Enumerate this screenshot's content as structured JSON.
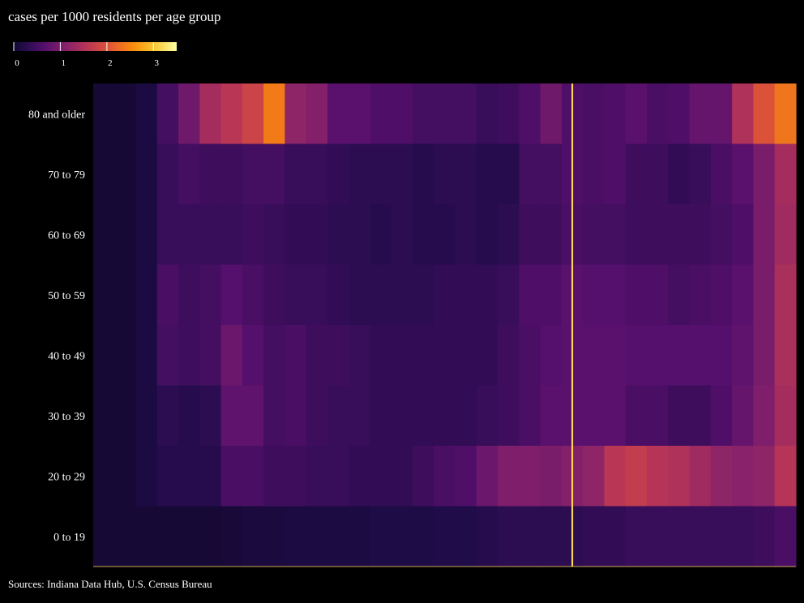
{
  "chart_data": {
    "type": "heatmap",
    "title": "cases per 1000 residents per age group",
    "source": "Sources: Indiana Data Hub, U.S. Census Bureau",
    "colorscale": "inferno",
    "color_range": [
      0,
      3.5
    ],
    "colorbar": {
      "ticks": [
        0,
        1,
        2,
        3
      ],
      "tick_labels": [
        "0",
        "1",
        "2",
        "3"
      ]
    },
    "rows": [
      "80 and older",
      "70 to 79",
      "60 to 69",
      "50 to 59",
      "40 to 49",
      "30 to 39",
      "20 to 29",
      "0 to 19"
    ],
    "highlight_column": 22,
    "highlight_color": "#ffd84a",
    "values": [
      [
        0.05,
        0.05,
        0.15,
        0.5,
        0.9,
        1.4,
        1.6,
        1.8,
        2.4,
        1.2,
        1.1,
        0.7,
        0.7,
        0.6,
        0.6,
        0.5,
        0.5,
        0.5,
        0.4,
        0.45,
        0.6,
        0.9,
        0.6,
        0.55,
        0.6,
        0.7,
        0.55,
        0.6,
        0.8,
        0.8,
        1.5,
        2.0,
        2.35
      ],
      [
        0.05,
        0.05,
        0.15,
        0.4,
        0.5,
        0.45,
        0.45,
        0.5,
        0.5,
        0.4,
        0.4,
        0.35,
        0.3,
        0.3,
        0.3,
        0.25,
        0.3,
        0.3,
        0.25,
        0.25,
        0.5,
        0.5,
        0.6,
        0.55,
        0.6,
        0.45,
        0.45,
        0.35,
        0.4,
        0.55,
        0.7,
        1.0,
        1.4
      ],
      [
        0.05,
        0.05,
        0.15,
        0.4,
        0.4,
        0.4,
        0.4,
        0.45,
        0.4,
        0.35,
        0.35,
        0.3,
        0.3,
        0.25,
        0.3,
        0.25,
        0.25,
        0.3,
        0.25,
        0.3,
        0.45,
        0.45,
        0.55,
        0.5,
        0.5,
        0.45,
        0.45,
        0.45,
        0.45,
        0.5,
        0.6,
        1.0,
        1.35
      ],
      [
        0.05,
        0.05,
        0.15,
        0.55,
        0.45,
        0.5,
        0.65,
        0.55,
        0.45,
        0.4,
        0.4,
        0.35,
        0.3,
        0.3,
        0.3,
        0.3,
        0.35,
        0.35,
        0.35,
        0.4,
        0.6,
        0.6,
        0.7,
        0.65,
        0.65,
        0.6,
        0.6,
        0.5,
        0.55,
        0.6,
        0.7,
        1.0,
        1.45
      ],
      [
        0.05,
        0.05,
        0.15,
        0.5,
        0.45,
        0.5,
        0.85,
        0.65,
        0.5,
        0.55,
        0.45,
        0.45,
        0.4,
        0.35,
        0.35,
        0.35,
        0.35,
        0.35,
        0.35,
        0.45,
        0.55,
        0.65,
        0.7,
        0.7,
        0.7,
        0.65,
        0.65,
        0.65,
        0.65,
        0.65,
        0.75,
        1.0,
        1.45
      ],
      [
        0.05,
        0.05,
        0.15,
        0.3,
        0.25,
        0.3,
        0.75,
        0.75,
        0.5,
        0.55,
        0.45,
        0.4,
        0.4,
        0.35,
        0.35,
        0.35,
        0.35,
        0.35,
        0.4,
        0.45,
        0.55,
        0.7,
        0.7,
        0.7,
        0.7,
        0.55,
        0.55,
        0.45,
        0.45,
        0.6,
        0.8,
        1.05,
        1.4
      ],
      [
        0.05,
        0.05,
        0.15,
        0.25,
        0.25,
        0.25,
        0.55,
        0.55,
        0.45,
        0.45,
        0.4,
        0.4,
        0.35,
        0.35,
        0.35,
        0.45,
        0.55,
        0.6,
        0.85,
        1.05,
        1.05,
        1.0,
        1.1,
        1.2,
        1.6,
        1.7,
        1.55,
        1.5,
        1.35,
        1.2,
        1.15,
        1.2,
        1.55
      ],
      [
        0.05,
        0.05,
        0.05,
        0.05,
        0.05,
        0.05,
        0.08,
        0.12,
        0.12,
        0.15,
        0.15,
        0.15,
        0.15,
        0.18,
        0.18,
        0.18,
        0.2,
        0.2,
        0.25,
        0.3,
        0.3,
        0.3,
        0.3,
        0.35,
        0.35,
        0.4,
        0.4,
        0.4,
        0.4,
        0.4,
        0.4,
        0.45,
        0.55
      ]
    ]
  }
}
